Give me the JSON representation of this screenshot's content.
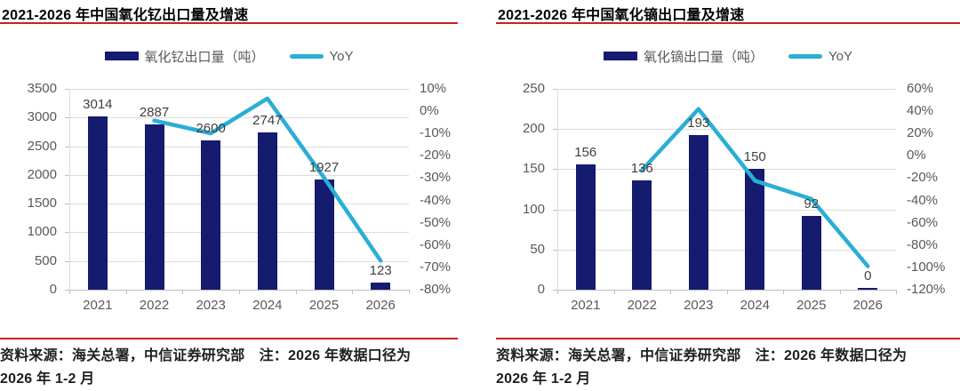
{
  "colors": {
    "accent-red": "#c62222",
    "bar-navy": "#151b6e",
    "line-cyan": "#2aaed6",
    "gridline": "#dcdcdc",
    "axis-line": "#bfbfbf",
    "tick-label": "#595959",
    "value-label": "#404040",
    "title-text": "#000000",
    "footer-text": "#1f1f1f"
  },
  "chart_data": [
    {
      "type": "bar",
      "subtype": "bar+line dual-axis combo",
      "title": "2021-2026 年中国氧化钇出口量及增速",
      "categories": [
        "2021",
        "2022",
        "2023",
        "2024",
        "2025",
        "2026"
      ],
      "series": [
        {
          "name": "氧化钇出口量（吨）",
          "chart_type": "bar",
          "axis": "left",
          "color": "#151b6e",
          "values": [
            3014,
            2887,
            2600,
            2747,
            1927,
            123
          ],
          "data_labels": [
            "3014",
            "2887",
            "2600",
            "2747",
            "1927",
            "123"
          ]
        },
        {
          "name": "YoY",
          "chart_type": "line",
          "axis": "right",
          "color": "#2aaed6",
          "values_pct": [
            null,
            -4.2,
            -9.9,
            5.7,
            -29.8,
            -67.0
          ]
        }
      ],
      "left_axis": {
        "min": 0,
        "max": 3500,
        "step": 500,
        "tick_labels": [
          "3500",
          "3000",
          "2500",
          "2000",
          "1500",
          "1000",
          "500",
          "0"
        ]
      },
      "right_axis": {
        "min": -80,
        "max": 10,
        "step": 10,
        "tick_labels": [
          "10%",
          "0%",
          "-10%",
          "-20%",
          "-30%",
          "-40%",
          "-50%",
          "-60%",
          "-70%",
          "-80%"
        ]
      },
      "grid": true,
      "legend_position": "top",
      "source_lines": [
        "资料来源：海关总署，中信证券研究部　注：2026 年数据口径为",
        "2026 年 1-2 月"
      ]
    },
    {
      "type": "bar",
      "subtype": "bar+line dual-axis combo",
      "title": "2021-2026 年中国氧化镝出口量及增速",
      "categories": [
        "2021",
        "2022",
        "2023",
        "2024",
        "2025",
        "2026"
      ],
      "series": [
        {
          "name": "氧化镝出口量（吨）",
          "chart_type": "bar",
          "axis": "left",
          "color": "#151b6e",
          "values": [
            156,
            136,
            193,
            150,
            92,
            0
          ],
          "data_labels": [
            "156",
            "136",
            "193",
            "150",
            "92",
            "0"
          ]
        },
        {
          "name": "YoY",
          "chart_type": "line",
          "axis": "right",
          "color": "#2aaed6",
          "values_pct": [
            null,
            -12.8,
            41.9,
            -22.3,
            -38.7,
            -99.0
          ]
        }
      ],
      "left_axis": {
        "min": 0,
        "max": 250,
        "step": 50,
        "tick_labels": [
          "250",
          "200",
          "150",
          "100",
          "50",
          "0"
        ]
      },
      "right_axis": {
        "min": -120,
        "max": 60,
        "step": 20,
        "tick_labels": [
          "60%",
          "40%",
          "20%",
          "0%",
          "-20%",
          "-40%",
          "-60%",
          "-80%",
          "-100%",
          "-120%"
        ]
      },
      "grid": true,
      "legend_position": "top",
      "source_lines": [
        "资料来源：海关总署，中信证券研究部　注：2026 年数据口径为",
        "2026 年 1-2 月"
      ]
    }
  ]
}
